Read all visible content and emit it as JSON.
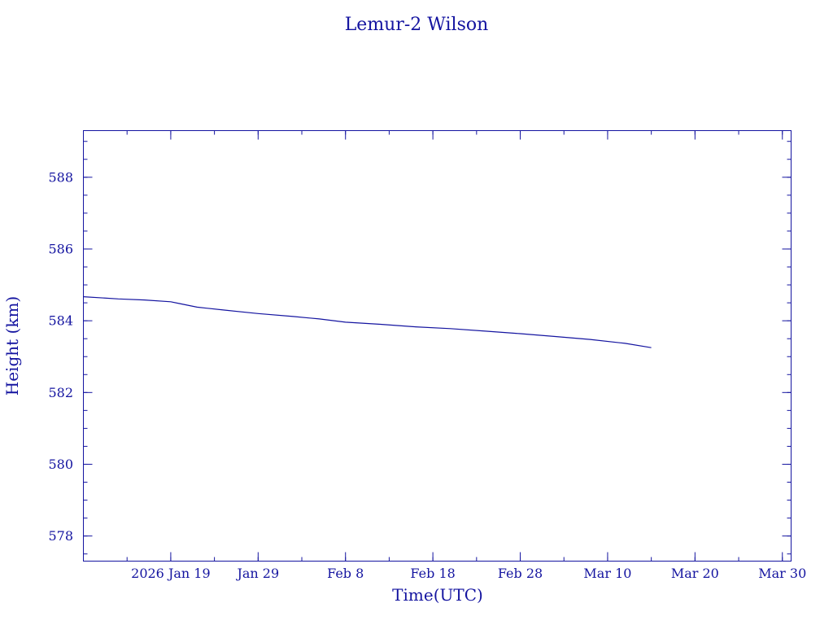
{
  "chart_data": {
    "type": "line",
    "title": "Lemur-2 Wilson",
    "xlabel": "Time(UTC)",
    "ylabel": "Height (km)",
    "x_tick_labels": [
      "2026 Jan 19",
      "Jan 29",
      "Feb  8",
      "Feb 18",
      "Feb 28",
      "Mar 10",
      "Mar 20",
      "Mar 30"
    ],
    "x_ticks": [
      "2026-01-19",
      "2026-01-29",
      "2026-02-08",
      "2026-02-18",
      "2026-02-28",
      "2026-03-10",
      "2026-03-20",
      "2026-03-30"
    ],
    "xlim": [
      "2026-01-09",
      "2026-03-31"
    ],
    "y_ticks": [
      578,
      580,
      582,
      584,
      586,
      588
    ],
    "ylim": [
      577.3,
      589.3
    ],
    "grid": false,
    "colors": {
      "ink": "#1414a0",
      "background": "#ffffff"
    },
    "series": [
      {
        "x": [
          "2026-01-09",
          "2026-01-13",
          "2026-01-16",
          "2026-01-19",
          "2026-01-20",
          "2026-01-22",
          "2026-01-25",
          "2026-01-29",
          "2026-02-02",
          "2026-02-05",
          "2026-02-08",
          "2026-02-12",
          "2026-02-16",
          "2026-02-20",
          "2026-02-24",
          "2026-02-28",
          "2026-03-04",
          "2026-03-08",
          "2026-03-12",
          "2026-03-15"
        ],
        "y": [
          584.67,
          584.61,
          584.58,
          584.53,
          584.48,
          584.38,
          584.3,
          584.2,
          584.12,
          584.05,
          583.96,
          583.9,
          583.83,
          583.78,
          583.71,
          583.64,
          583.56,
          583.48,
          583.37,
          583.25
        ]
      }
    ]
  }
}
